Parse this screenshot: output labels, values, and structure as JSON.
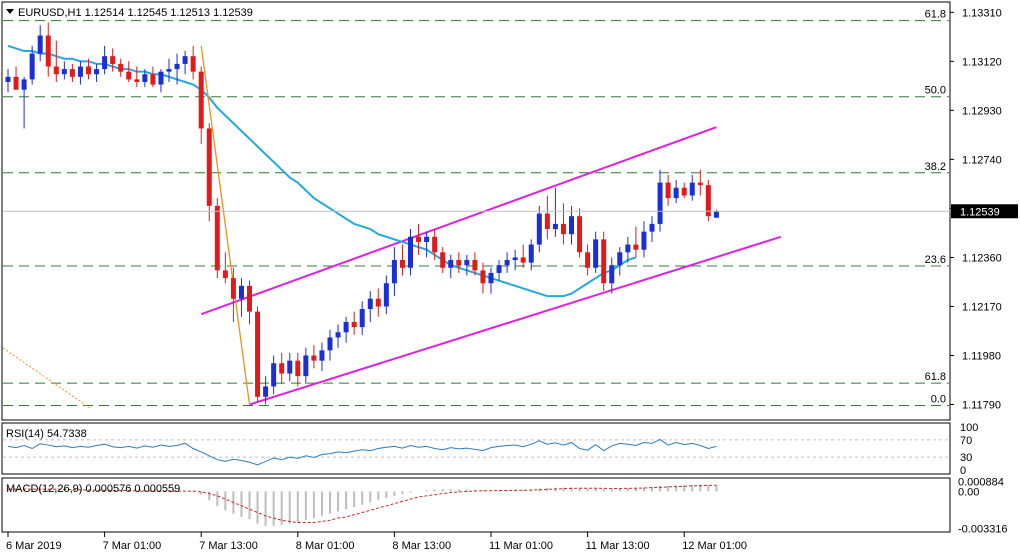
{
  "window": {
    "header": "EURUSD,H1  1.12514 1.12545 1.12513 1.12539",
    "menu_icon": "triangle-down-icon"
  },
  "colors": {
    "bull": "#1a2fd6",
    "bear": "#e01b1b",
    "ma": "#23a9e1",
    "channel": "#e020e0",
    "fib": "#2e7d32",
    "swing": "#f0901c",
    "osc": "#2b7dc2",
    "macd_signal": "#c62828",
    "macd_hist": "#bdbdbd",
    "grid": "#c0c0c0"
  },
  "chart_data": [
    {
      "type": "candlestick",
      "symbol": "EURUSD",
      "timeframe": "H1",
      "ohlc_readout": {
        "open": 1.12514,
        "high": 1.12545,
        "low": 1.12513,
        "close": 1.12539
      },
      "current_price_label": "1.12539",
      "current_price": 1.12539,
      "ylim": [
        1.1173,
        1.1335
      ],
      "y_ticks": [
        "1.13310",
        "1.13120",
        "1.12930",
        "1.12740",
        "1.12550",
        "1.12360",
        "1.12170",
        "1.11980",
        "1.11790"
      ],
      "y_tick_values": [
        1.1331,
        1.1312,
        1.1293,
        1.1274,
        1.1255,
        1.1236,
        1.1217,
        1.1198,
        1.1179
      ],
      "x_ticks": [
        "6 Mar 2019",
        "7 Mar 01:00",
        "7 Mar 13:00",
        "8 Mar 01:00",
        "8 Mar 13:00",
        "11 Mar 01:00",
        "11 Mar 13:00",
        "12 Mar 01:00"
      ],
      "x_tick_bars": [
        0,
        12,
        24,
        36,
        48,
        60,
        72,
        84
      ],
      "fib_levels": [
        {
          "label": "61.8",
          "price": 1.13278
        },
        {
          "label": "50.0",
          "price": 1.12983
        },
        {
          "label": "38.2",
          "price": 1.12688
        },
        {
          "label": "23.6",
          "price": 1.12327
        },
        {
          "label": "61.8",
          "price": 1.11873
        },
        {
          "label": "0.0",
          "price": 1.11786
        }
      ],
      "candles": [
        [
          1.1304,
          1.1309,
          1.13,
          1.1306
        ],
        [
          1.1306,
          1.131,
          1.1302,
          1.1301
        ],
        [
          1.1301,
          1.1306,
          1.1286,
          1.1305
        ],
        [
          1.1305,
          1.1318,
          1.1303,
          1.1315
        ],
        [
          1.1315,
          1.1326,
          1.1312,
          1.1322
        ],
        [
          1.1322,
          1.1327,
          1.1306,
          1.131
        ],
        [
          1.131,
          1.132,
          1.1304,
          1.1307
        ],
        [
          1.1307,
          1.1312,
          1.1305,
          1.1309
        ],
        [
          1.1309,
          1.1311,
          1.1304,
          1.1306
        ],
        [
          1.1306,
          1.1312,
          1.1303,
          1.131
        ],
        [
          1.131,
          1.1313,
          1.1305,
          1.1307
        ],
        [
          1.1307,
          1.1311,
          1.1304,
          1.1309
        ],
        [
          1.1309,
          1.1318,
          1.1307,
          1.1314
        ],
        [
          1.1314,
          1.1317,
          1.1308,
          1.1311
        ],
        [
          1.1311,
          1.1313,
          1.1306,
          1.1308
        ],
        [
          1.1308,
          1.1312,
          1.1304,
          1.1305
        ],
        [
          1.1305,
          1.131,
          1.1302,
          1.1304
        ],
        [
          1.1304,
          1.1309,
          1.1302,
          1.1307
        ],
        [
          1.1307,
          1.131,
          1.1302,
          1.1303
        ],
        [
          1.1303,
          1.1309,
          1.13,
          1.1308
        ],
        [
          1.1308,
          1.1313,
          1.1304,
          1.1309
        ],
        [
          1.1309,
          1.1315,
          1.1303,
          1.1311
        ],
        [
          1.1311,
          1.1316,
          1.1307,
          1.1314
        ],
        [
          1.1314,
          1.1318,
          1.1305,
          1.1308
        ],
        [
          1.1308,
          1.131,
          1.128,
          1.1286
        ],
        [
          1.1286,
          1.1288,
          1.125,
          1.1256
        ],
        [
          1.1256,
          1.1259,
          1.1228,
          1.1231
        ],
        [
          1.1231,
          1.1238,
          1.1226,
          1.1228
        ],
        [
          1.1228,
          1.1232,
          1.1211,
          1.122
        ],
        [
          1.122,
          1.1228,
          1.1213,
          1.1225
        ],
        [
          1.1225,
          1.1227,
          1.121,
          1.1215
        ],
        [
          1.1215,
          1.1217,
          1.118,
          1.1182
        ],
        [
          1.1182,
          1.119,
          1.1179,
          1.1186
        ],
        [
          1.1186,
          1.1198,
          1.1183,
          1.1195
        ],
        [
          1.1195,
          1.1199,
          1.1187,
          1.1191
        ],
        [
          1.1191,
          1.1199,
          1.1188,
          1.1196
        ],
        [
          1.1196,
          1.1199,
          1.1186,
          1.119
        ],
        [
          1.119,
          1.1201,
          1.1187,
          1.1198
        ],
        [
          1.1198,
          1.1202,
          1.1193,
          1.1196
        ],
        [
          1.1196,
          1.1203,
          1.1192,
          1.12
        ],
        [
          1.12,
          1.1208,
          1.1196,
          1.1205
        ],
        [
          1.1205,
          1.121,
          1.1201,
          1.1207
        ],
        [
          1.1207,
          1.1213,
          1.1203,
          1.1211
        ],
        [
          1.1211,
          1.1215,
          1.1206,
          1.1209
        ],
        [
          1.1209,
          1.1219,
          1.1206,
          1.1216
        ],
        [
          1.1216,
          1.1223,
          1.1211,
          1.122
        ],
        [
          1.122,
          1.1224,
          1.1213,
          1.1217
        ],
        [
          1.1217,
          1.1229,
          1.1214,
          1.1226
        ],
        [
          1.1226,
          1.124,
          1.1221,
          1.1235
        ],
        [
          1.1235,
          1.1241,
          1.1229,
          1.1232
        ],
        [
          1.1232,
          1.1247,
          1.1229,
          1.1244
        ],
        [
          1.1244,
          1.1249,
          1.1237,
          1.1242
        ],
        [
          1.1242,
          1.1246,
          1.1236,
          1.1244
        ],
        [
          1.1244,
          1.1247,
          1.1235,
          1.1238
        ],
        [
          1.1238,
          1.124,
          1.123,
          1.1232
        ],
        [
          1.1232,
          1.1237,
          1.1228,
          1.1235
        ],
        [
          1.1235,
          1.1238,
          1.123,
          1.1233
        ],
        [
          1.1233,
          1.1237,
          1.1229,
          1.1235
        ],
        [
          1.1235,
          1.1238,
          1.1229,
          1.1231
        ],
        [
          1.1231,
          1.1234,
          1.1222,
          1.1226
        ],
        [
          1.1226,
          1.1232,
          1.1222,
          1.123
        ],
        [
          1.123,
          1.1235,
          1.1227,
          1.1233
        ],
        [
          1.1233,
          1.1238,
          1.123,
          1.1235
        ],
        [
          1.1235,
          1.1239,
          1.1231,
          1.1236
        ],
        [
          1.1236,
          1.1241,
          1.1232,
          1.1234
        ],
        [
          1.1234,
          1.1243,
          1.1231,
          1.1241
        ],
        [
          1.1241,
          1.1256,
          1.1238,
          1.1253
        ],
        [
          1.1253,
          1.126,
          1.1243,
          1.1247
        ],
        [
          1.1247,
          1.1263,
          1.1244,
          1.1249
        ],
        [
          1.1249,
          1.1257,
          1.1241,
          1.1245
        ],
        [
          1.1245,
          1.1256,
          1.1241,
          1.1252
        ],
        [
          1.1252,
          1.1255,
          1.1236,
          1.1238
        ],
        [
          1.1238,
          1.1241,
          1.1229,
          1.1232
        ],
        [
          1.1232,
          1.1246,
          1.123,
          1.1243
        ],
        [
          1.1243,
          1.1246,
          1.1223,
          1.1226
        ],
        [
          1.1226,
          1.1236,
          1.1222,
          1.1233
        ],
        [
          1.1233,
          1.124,
          1.1229,
          1.1238
        ],
        [
          1.1238,
          1.1244,
          1.1234,
          1.1241
        ],
        [
          1.1241,
          1.1248,
          1.1236,
          1.1239
        ],
        [
          1.1239,
          1.125,
          1.1236,
          1.1246
        ],
        [
          1.1246,
          1.1252,
          1.1242,
          1.1249
        ],
        [
          1.1249,
          1.127,
          1.1246,
          1.1265
        ],
        [
          1.1265,
          1.1268,
          1.1256,
          1.1259
        ],
        [
          1.1259,
          1.1266,
          1.1257,
          1.1263
        ],
        [
          1.1263,
          1.1265,
          1.1259,
          1.126
        ],
        [
          1.126,
          1.1268,
          1.1258,
          1.1265
        ],
        [
          1.1265,
          1.127,
          1.126,
          1.1264
        ],
        [
          1.1264,
          1.1266,
          1.125,
          1.1252
        ],
        [
          1.12514,
          1.12545,
          1.12513,
          1.12539
        ]
      ],
      "ma_line": [
        1.1318,
        1.1317,
        1.1316,
        1.1316,
        1.1315,
        1.1315,
        1.1314,
        1.1313,
        1.1313,
        1.1312,
        1.1312,
        1.1311,
        1.1311,
        1.131,
        1.1309,
        1.1309,
        1.1308,
        1.1308,
        1.1307,
        1.1307,
        1.1306,
        1.1305,
        1.1304,
        1.1303,
        1.1301,
        1.1298,
        1.1294,
        1.1291,
        1.1288,
        1.1285,
        1.1282,
        1.1279,
        1.1276,
        1.1273,
        1.127,
        1.1267,
        1.1265,
        1.1262,
        1.1259,
        1.1257,
        1.1255,
        1.1253,
        1.1251,
        1.1249,
        1.1248,
        1.1247,
        1.1245,
        1.1244,
        1.1243,
        1.1242,
        1.1241,
        1.124,
        1.1239,
        1.1237,
        1.1235,
        1.1233,
        1.1232,
        1.1231,
        1.123,
        1.1229,
        1.1228,
        1.1227,
        1.1226,
        1.1225,
        1.1224,
        1.1223,
        1.1222,
        1.1221,
        1.1221,
        1.1221,
        1.1222,
        1.1224,
        1.1226,
        1.1228,
        1.123,
        1.1231,
        1.1233,
        1.1235,
        1.1236
      ],
      "channel_upper": {
        "start": {
          "bar": 24,
          "price": 1.1214
        },
        "end": {
          "bar": 88,
          "price": 1.12865
        }
      },
      "channel_lower": {
        "start": {
          "bar": 30,
          "price": 1.1179
        },
        "end": {
          "bar": 96,
          "price": 1.1244
        }
      },
      "swing_line": {
        "start": {
          "bar": 24,
          "price": 1.1318
        },
        "end": {
          "bar": 30,
          "price": 1.1179
        }
      }
    },
    {
      "type": "line",
      "title": "RSI(14) 54.7338",
      "ylim": [
        0,
        100
      ],
      "y_ticks": [
        "100",
        "70",
        "30",
        "0"
      ],
      "y_tick_values": [
        100,
        70,
        30,
        0
      ],
      "values": [
        55,
        52,
        57,
        50,
        61,
        58,
        54,
        56,
        52,
        55,
        53,
        57,
        60,
        54,
        52,
        55,
        51,
        56,
        53,
        58,
        55,
        57,
        62,
        50,
        42,
        33,
        24,
        20,
        25,
        22,
        18,
        12,
        20,
        28,
        24,
        30,
        27,
        33,
        29,
        36,
        38,
        42,
        40,
        44,
        47,
        45,
        50,
        53,
        55,
        51,
        57,
        53,
        55,
        50,
        47,
        52,
        49,
        51,
        48,
        45,
        52,
        55,
        57,
        58,
        54,
        60,
        68,
        60,
        63,
        58,
        64,
        50,
        46,
        59,
        45,
        56,
        62,
        60,
        57,
        64,
        62,
        71,
        58,
        64,
        59,
        62,
        57,
        50,
        55
      ]
    },
    {
      "type": "histogram+line",
      "title": "MACD(12,26,9) 0.000576 0.000559",
      "ylim": [
        -0.00365,
        0.0012
      ],
      "y_ticks": [
        "0.000884",
        "0.00",
        "-0.003316"
      ],
      "y_tick_values": [
        0.000884,
        0,
        -0.003316
      ],
      "histogram": [
        0.0002,
        0.0002,
        0.00015,
        0.0002,
        0.00025,
        0.0002,
        0.00015,
        0.0001,
        0.0001,
        8e-05,
        6e-05,
        5e-05,
        7e-05,
        6e-05,
        4e-05,
        2e-05,
        0.0,
        -1e-05,
        -2e-05,
        -1e-05,
        0.0,
        2e-05,
        4e-05,
        3e-05,
        -0.0003,
        -0.0008,
        -0.0013,
        -0.0017,
        -0.002,
        -0.0023,
        -0.0025,
        -0.0029,
        -0.0031,
        -0.0031,
        -0.003,
        -0.0029,
        -0.0028,
        -0.0026,
        -0.0024,
        -0.0022,
        -0.002,
        -0.0018,
        -0.0016,
        -0.0014,
        -0.0012,
        -0.001,
        -0.0008,
        -0.0006,
        -0.0004,
        -0.00025,
        -0.0001,
        0.0,
        0.0001,
        0.00015,
        0.0002,
        0.0002,
        0.00018,
        0.00016,
        0.00014,
        0.0001,
        8e-05,
        0.0001,
        0.00012,
        0.00014,
        0.00013,
        0.00016,
        0.00025,
        0.0003,
        0.00033,
        0.00034,
        0.00036,
        0.00032,
        0.00026,
        0.00028,
        0.00022,
        0.00022,
        0.00026,
        0.0003,
        0.00032,
        0.00035,
        0.0004,
        0.00048,
        0.0005,
        0.00053,
        0.00055,
        0.00057,
        0.00058,
        0.00056,
        0.000576
      ],
      "signal": [
        0.0002,
        0.0002,
        0.0002,
        0.0002,
        0.0002,
        0.0002,
        0.0002,
        0.00018,
        0.00016,
        0.00014,
        0.00012,
        0.0001,
        0.0001,
        9e-05,
        8e-05,
        7e-05,
        5e-05,
        4e-05,
        3e-05,
        2e-05,
        2e-05,
        2e-05,
        2e-05,
        2e-05,
        -5e-05,
        -0.0002,
        -0.0004,
        -0.0007,
        -0.001,
        -0.0013,
        -0.0016,
        -0.0019,
        -0.0022,
        -0.0024,
        -0.0026,
        -0.0027,
        -0.0028,
        -0.0028,
        -0.0028,
        -0.0027,
        -0.0026,
        -0.0024,
        -0.0023,
        -0.0021,
        -0.0019,
        -0.0017,
        -0.0015,
        -0.0013,
        -0.0011,
        -0.0009,
        -0.0007,
        -0.0005,
        -0.0004,
        -0.0003,
        -0.0002,
        -0.0001,
        -5e-05,
        0.0,
        3e-05,
        5e-05,
        6e-05,
        7e-05,
        8e-05,
        9e-05,
        0.0001,
        0.00012,
        0.00015,
        0.00018,
        0.00021,
        0.00024,
        0.00027,
        0.00028,
        0.00028,
        0.00028,
        0.00027,
        0.00026,
        0.00026,
        0.00027,
        0.00028,
        0.0003,
        0.00033,
        0.00036,
        0.0004,
        0.00043,
        0.00046,
        0.00049,
        0.00052,
        0.00054,
        0.000559
      ]
    }
  ]
}
